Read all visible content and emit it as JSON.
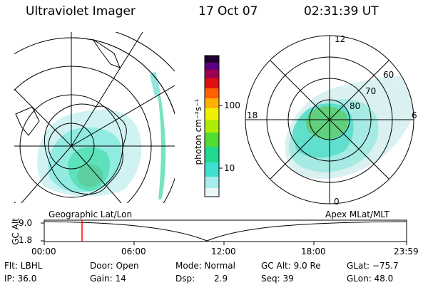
{
  "header": {
    "title": "Ultraviolet Imager",
    "date": "17 Oct 07",
    "time": "02:31:39 UT"
  },
  "colorbar": {
    "unit_label": "photon cm⁻²s⁻¹",
    "ticks": [
      "100",
      "10"
    ],
    "scale": "log",
    "colors": [
      "#ffffff",
      "#c8f0f0",
      "#40e0d0",
      "#20d080",
      "#80e020",
      "#d8f000",
      "#ffc800",
      "#ff8000",
      "#ff2000",
      "#c00060",
      "#600080",
      "#200030"
    ]
  },
  "left_map": {
    "label": "Geographic Lat/Lon",
    "auroral_color": "#40d8c8"
  },
  "right_map": {
    "label": "Apex MLat/MLT",
    "mlt_labels": {
      "top": "12",
      "bottom": "0",
      "left": "18",
      "right": "6"
    },
    "mlat_labels": [
      "60",
      "70",
      "80"
    ]
  },
  "altitude_plot": {
    "axis_label": "GC Alt",
    "y_ticks": [
      "9.0",
      "1.8"
    ],
    "x_ticks": [
      "00:00",
      "06:00",
      "12:00",
      "18:00",
      "23:59"
    ],
    "marker_time": "02:31",
    "marker_color": "#ff0000"
  },
  "info": {
    "row1": {
      "flt": "Flt: LBHL",
      "door": "Door: Open",
      "mode": "Mode: Normal",
      "gcalt": "GC Alt: 9.0 Re",
      "glat": "GLat: −75.7"
    },
    "row2": {
      "ip": "IP: 36.0",
      "gain": "Gain: 14",
      "dsp_label": "Dsp:",
      "dsp_value": "2.9",
      "seq": "Seq: 39",
      "glon": "GLon:  48.0"
    }
  }
}
